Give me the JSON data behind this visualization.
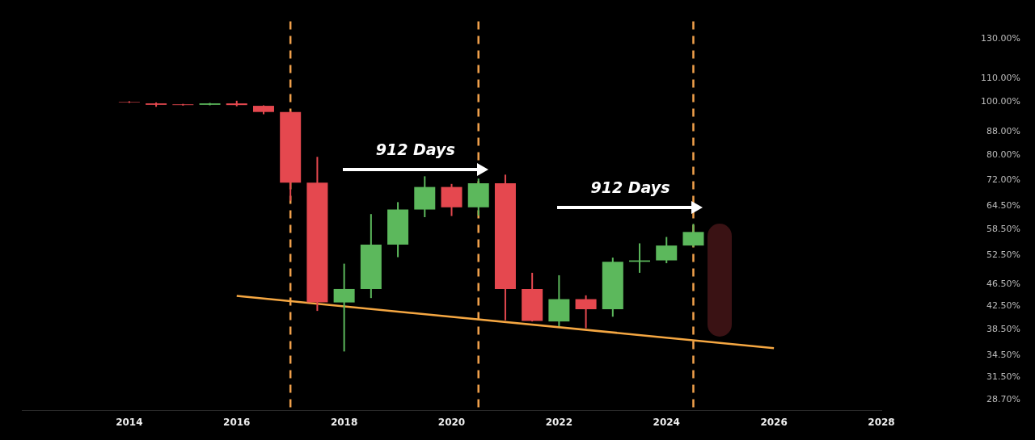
{
  "chart_data": {
    "type": "candlestick",
    "x": [
      2014.0,
      2014.5,
      2015.0,
      2015.5,
      2016.0,
      2016.5,
      2017.0,
      2017.5,
      2018.0,
      2018.5,
      2019.0,
      2019.5,
      2020.0,
      2020.5,
      2021.0,
      2021.5,
      2022.0,
      2022.5,
      2023.0,
      2023.5,
      2024.0,
      2024.5
    ],
    "ohlc": [
      [
        99.8,
        100.1,
        99.4,
        99.6
      ],
      [
        99.2,
        99.6,
        97.8,
        98.6
      ],
      [
        98.8,
        99.0,
        98.3,
        98.5
      ],
      [
        98.6,
        99.4,
        98.4,
        99.2
      ],
      [
        99.2,
        100.3,
        98.0,
        98.5
      ],
      [
        98.2,
        98.4,
        94.8,
        95.7
      ],
      [
        95.7,
        96.0,
        66.0,
        71.2
      ],
      [
        71.2,
        79.3,
        41.6,
        43.1
      ],
      [
        43.1,
        50.7,
        35.1,
        45.6
      ],
      [
        45.6,
        62.4,
        43.9,
        54.9
      ],
      [
        54.9,
        65.6,
        52.1,
        63.6
      ],
      [
        63.6,
        73.1,
        61.6,
        69.9
      ],
      [
        69.9,
        70.8,
        61.9,
        64.2
      ],
      [
        64.2,
        72.4,
        62.0,
        71.0
      ],
      [
        71.0,
        73.6,
        40.0,
        45.6
      ],
      [
        45.6,
        48.8,
        39.8,
        39.9
      ],
      [
        39.8,
        48.3,
        39.0,
        43.7
      ],
      [
        43.7,
        44.4,
        38.7,
        41.9
      ],
      [
        41.9,
        52.0,
        40.6,
        51.1
      ],
      [
        51.1,
        55.2,
        48.8,
        51.4
      ],
      [
        51.4,
        56.7,
        50.8,
        54.7
      ],
      [
        54.7,
        59.9,
        54.4,
        57.9
      ]
    ],
    "colors": [
      "#e5484f",
      "#e5484f",
      "#e5484f",
      "#5cb85c",
      "#e5484f",
      "#e5484f",
      "#e5484f",
      "#e5484f",
      "#5cb85c",
      "#5cb85c",
      "#5cb85c",
      "#5cb85c",
      "#e5484f",
      "#5cb85c",
      "#e5484f",
      "#e5484f",
      "#5cb85c",
      "#e5484f",
      "#5cb85c",
      "#5cb85c",
      "#5cb85c",
      "#5cb85c"
    ],
    "series": [
      {
        "type": "line",
        "x": [
          2016.0,
          2026.0
        ],
        "values": [
          44.3,
          35.6
        ],
        "color": "#f5a742"
      }
    ],
    "ref_lines": [
      {
        "axis": "x",
        "value": 2017.0,
        "color": "#f0a04b",
        "line_style": "dashed"
      },
      {
        "axis": "x",
        "value": 2020.5,
        "color": "#f0a04b",
        "line_style": "dashed"
      },
      {
        "axis": "x",
        "value": 2024.5,
        "color": "#f0a04b",
        "line_style": "dashed"
      }
    ],
    "annotations": [
      "912 Days",
      "912 Days"
    ],
    "log": true,
    "xlim": [
      2012,
      2028
    ],
    "xticks": [
      2014,
      2016,
      2018,
      2020,
      2022,
      2024,
      2026,
      2028
    ],
    "ylim": [
      27.4,
      139.8
    ],
    "yticks": [
      {
        "value": 28.7,
        "label": "28.70%"
      },
      {
        "value": 31.5,
        "label": "31.50%"
      },
      {
        "value": 34.5,
        "label": "34.50%"
      },
      {
        "value": 38.5,
        "label": "38.50%"
      },
      {
        "value": 42.5,
        "label": "42.50%"
      },
      {
        "value": 46.5,
        "label": "46.50%"
      },
      {
        "value": 52.5,
        "label": "52.50%"
      },
      {
        "value": 58.5,
        "label": "58.50%"
      },
      {
        "value": 64.5,
        "label": "64.50%"
      },
      {
        "value": 72,
        "label": "72.00%"
      },
      {
        "value": 80,
        "label": "80.00%"
      },
      {
        "value": 88,
        "label": "88.00%"
      },
      {
        "value": 100,
        "label": "100.00%"
      },
      {
        "value": 110,
        "label": "110.00%"
      },
      {
        "value": 130,
        "label": "130.00%"
      }
    ]
  }
}
